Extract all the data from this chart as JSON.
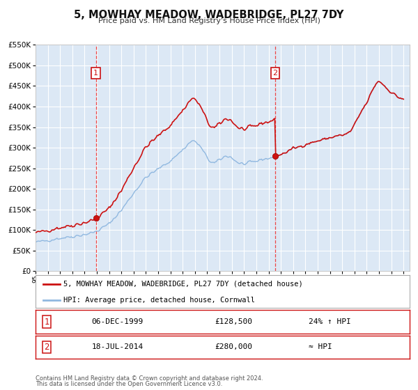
{
  "title": "5, MOWHAY MEADOW, WADEBRIDGE, PL27 7DY",
  "subtitle": "Price paid vs. HM Land Registry's House Price Index (HPI)",
  "plot_bg_color": "#dce8f5",
  "grid_color": "#ffffff",
  "hpi_line_color": "#90b8e0",
  "price_line_color": "#cc1111",
  "sale1_x": 1999.92,
  "sale1_price": 128500,
  "sale2_x": 2014.54,
  "sale2_price": 280000,
  "sale1_label": "06-DEC-1999",
  "sale2_label": "18-JUL-2014",
  "sale1_text": "24% ↑ HPI",
  "sale2_text": "≈ HPI",
  "legend_label1": "5, MOWHAY MEADOW, WADEBRIDGE, PL27 7DY (detached house)",
  "legend_label2": "HPI: Average price, detached house, Cornwall",
  "footer1": "Contains HM Land Registry data © Crown copyright and database right 2024.",
  "footer2": "This data is licensed under the Open Government Licence v3.0.",
  "ylim": [
    0,
    550000
  ],
  "yticks": [
    0,
    50000,
    100000,
    150000,
    200000,
    250000,
    300000,
    350000,
    400000,
    450000,
    500000,
    550000
  ],
  "xstart": 1995.0,
  "xend": 2025.5,
  "box_color": "#cc1111"
}
